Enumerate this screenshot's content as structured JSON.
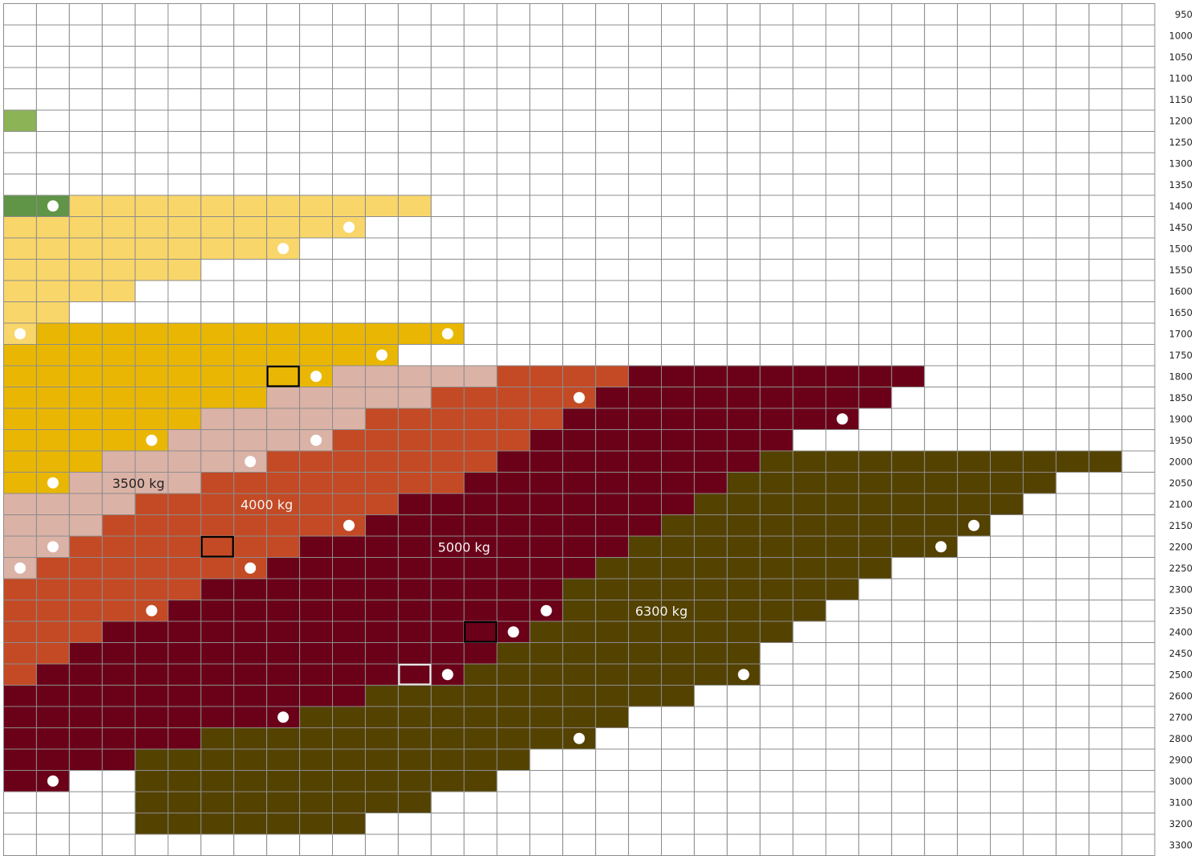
{
  "chart_data": {
    "type": "heatmap",
    "columns": 35,
    "y_labels": [
      "950",
      "1000",
      "1050",
      "1100",
      "1150",
      "1200",
      "1250",
      "1300",
      "1350",
      "1400",
      "1450",
      "1500",
      "1550",
      "1600",
      "1650",
      "1700",
      "1750",
      "1800",
      "1850",
      "1900",
      "1950",
      "2000",
      "2050",
      "2100",
      "2150",
      "2200",
      "2250",
      "2300",
      "2350",
      "2400",
      "2450",
      "2500",
      "2600",
      "2700",
      "2800",
      "2900",
      "3000",
      "3100",
      "3200",
      "3300"
    ],
    "legend": {
      "G": {
        "color": "#8cb356"
      },
      "DG": {
        "color": "#609446"
      },
      "LY": {
        "color": "#f9d66a"
      },
      "Y": {
        "color": "#e9b703"
      },
      "P": {
        "color": "#dbb2a6"
      },
      "O": {
        "color": "#c34a25"
      },
      "R": {
        "color": "#6b0119"
      },
      "K": {
        "color": "#544200"
      }
    },
    "rows": [
      [],
      [],
      [],
      [],
      [],
      [
        [
          "G",
          0,
          0
        ]
      ],
      [],
      [],
      [],
      [
        [
          "DG",
          0,
          1
        ],
        [
          "LY",
          2,
          12
        ]
      ],
      [
        [
          "LY",
          0,
          10
        ]
      ],
      [
        [
          "LY",
          0,
          8
        ]
      ],
      [
        [
          "LY",
          0,
          5
        ]
      ],
      [
        [
          "LY",
          0,
          3
        ]
      ],
      [
        [
          "LY",
          0,
          1
        ]
      ],
      [
        [
          "LY",
          0,
          0
        ],
        [
          "Y",
          1,
          13
        ]
      ],
      [
        [
          "Y",
          0,
          11
        ]
      ],
      [
        [
          "Y",
          0,
          9
        ],
        [
          "P",
          10,
          14
        ],
        [
          "O",
          15,
          18
        ],
        [
          "R",
          19,
          27
        ]
      ],
      [
        [
          "Y",
          0,
          7
        ],
        [
          "P",
          8,
          12
        ],
        [
          "O",
          13,
          17
        ],
        [
          "R",
          18,
          26
        ]
      ],
      [
        [
          "Y",
          0,
          5
        ],
        [
          "P",
          6,
          10
        ],
        [
          "O",
          11,
          16
        ],
        [
          "R",
          17,
          25
        ]
      ],
      [
        [
          "Y",
          0,
          4
        ],
        [
          "P",
          5,
          9
        ],
        [
          "O",
          10,
          15
        ],
        [
          "R",
          16,
          23
        ]
      ],
      [
        [
          "Y",
          0,
          2
        ],
        [
          "P",
          3,
          7
        ],
        [
          "O",
          8,
          14
        ],
        [
          "R",
          15,
          22
        ],
        [
          "K",
          23,
          33
        ]
      ],
      [
        [
          "Y",
          0,
          1
        ],
        [
          "P",
          2,
          5
        ],
        [
          "O",
          6,
          13
        ],
        [
          "R",
          14,
          21
        ],
        [
          "K",
          22,
          31
        ]
      ],
      [
        [
          "P",
          0,
          3
        ],
        [
          "O",
          4,
          11
        ],
        [
          "R",
          12,
          20
        ],
        [
          "K",
          21,
          30
        ]
      ],
      [
        [
          "P",
          0,
          2
        ],
        [
          "O",
          3,
          10
        ],
        [
          "R",
          11,
          19
        ],
        [
          "K",
          20,
          29
        ]
      ],
      [
        [
          "P",
          0,
          1
        ],
        [
          "O",
          2,
          8
        ],
        [
          "R",
          9,
          18
        ],
        [
          "K",
          19,
          28
        ]
      ],
      [
        [
          "P",
          0,
          0
        ],
        [
          "O",
          1,
          7
        ],
        [
          "R",
          8,
          17
        ],
        [
          "K",
          18,
          26
        ]
      ],
      [
        [
          "O",
          0,
          5
        ],
        [
          "R",
          6,
          16
        ],
        [
          "K",
          17,
          25
        ]
      ],
      [
        [
          "O",
          0,
          4
        ],
        [
          "R",
          5,
          16
        ],
        [
          "K",
          17,
          24
        ]
      ],
      [
        [
          "O",
          0,
          2
        ],
        [
          "R",
          3,
          15
        ],
        [
          "K",
          16,
          23
        ]
      ],
      [
        [
          "O",
          0,
          1
        ],
        [
          "R",
          2,
          14
        ],
        [
          "K",
          15,
          22
        ]
      ],
      [
        [
          "O",
          0,
          0
        ],
        [
          "R",
          1,
          13
        ],
        [
          "K",
          14,
          22
        ]
      ],
      [
        [
          "R",
          0,
          10
        ],
        [
          "K",
          11,
          20
        ]
      ],
      [
        [
          "R",
          0,
          8
        ],
        [
          "K",
          9,
          18
        ]
      ],
      [
        [
          "R",
          0,
          5
        ],
        [
          "K",
          6,
          17
        ]
      ],
      [
        [
          "R",
          0,
          3
        ],
        [
          "K",
          4,
          15
        ]
      ],
      [
        [
          "R",
          0,
          1
        ],
        [
          "K",
          4,
          14
        ]
      ],
      [
        [
          "K",
          4,
          12
        ]
      ],
      [
        [
          "K",
          4,
          10
        ]
      ],
      []
    ],
    "markers": [
      [
        1,
        9
      ],
      [
        10,
        10
      ],
      [
        8,
        11
      ],
      [
        0,
        15
      ],
      [
        13,
        15
      ],
      [
        11,
        16
      ],
      [
        9,
        17
      ],
      [
        17,
        18
      ],
      [
        25,
        19
      ],
      [
        4,
        20
      ],
      [
        9,
        20
      ],
      [
        7,
        21
      ],
      [
        1,
        22
      ],
      [
        10,
        24
      ],
      [
        29,
        24
      ],
      [
        1,
        25
      ],
      [
        28,
        25
      ],
      [
        0,
        26
      ],
      [
        7,
        26
      ],
      [
        4,
        28
      ],
      [
        16,
        28
      ],
      [
        15,
        29
      ],
      [
        13,
        31
      ],
      [
        22,
        31
      ],
      [
        8,
        33
      ],
      [
        17,
        34
      ],
      [
        1,
        36
      ]
    ],
    "outlined_cells": [
      {
        "col": 8,
        "row": 17,
        "color": "black"
      },
      {
        "col": 6,
        "row": 25,
        "color": "black"
      },
      {
        "col": 14,
        "row": 29,
        "color": "black"
      },
      {
        "col": 12,
        "row": 31,
        "color": "light-gray"
      }
    ],
    "region_labels": [
      {
        "text": "3500 kg",
        "col": 4.1,
        "row": 22.5,
        "color": "#222222"
      },
      {
        "text": "4000 kg",
        "col": 8.0,
        "row": 23.5,
        "color": "#f3f3f3"
      },
      {
        "text": "5000 kg",
        "col": 14.0,
        "row": 25.5,
        "color": "#f3f3f3"
      },
      {
        "text": "6300 kg",
        "col": 20.0,
        "row": 28.5,
        "color": "#f3f3f3"
      }
    ]
  }
}
